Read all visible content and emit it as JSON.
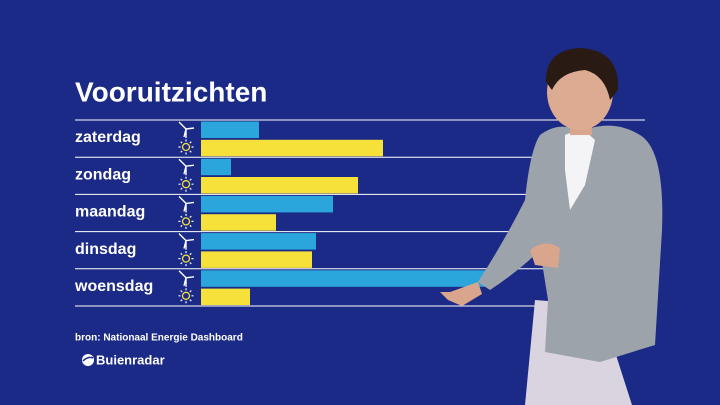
{
  "chart_data": {
    "type": "bar",
    "title": "Vooruitzichten",
    "categories": [
      "zaterdag",
      "zondag",
      "maandag",
      "dinsdag",
      "woensdag"
    ],
    "series": [
      {
        "color": "#2ba6dd",
        "values": [
          58,
          30,
          132,
          115,
          290
        ]
      },
      {
        "color": "#f6e03a",
        "values": [
          182,
          157,
          75,
          111,
          49
        ]
      }
    ],
    "xlim": [
      0,
      300
    ],
    "source": "bron: Nationaal Energie Dashboard",
    "brand": "Buienradar"
  }
}
